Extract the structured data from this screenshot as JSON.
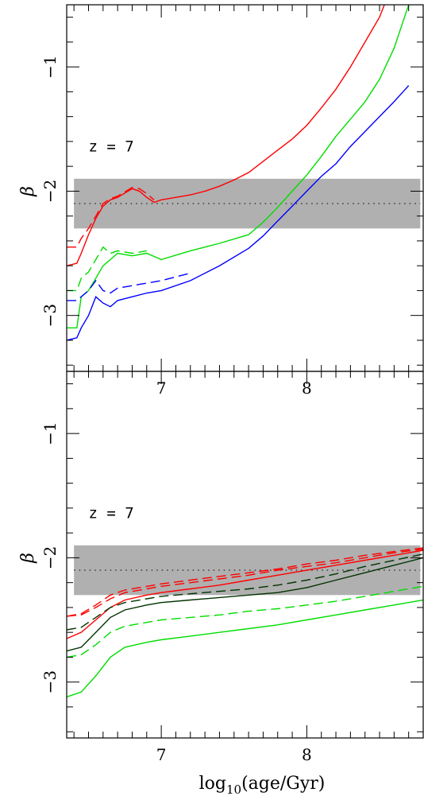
{
  "chart_data": [
    {
      "type": "line",
      "panel": "top",
      "annotation": "z = 7",
      "ylabel": "β",
      "xlim": [
        6.35,
        8.8
      ],
      "ylim": [
        -3.45,
        -0.5
      ],
      "xticks": [
        7,
        8
      ],
      "xtick_labels": [
        "7",
        "8"
      ],
      "yticks": [
        -1,
        -2,
        -3
      ],
      "ytick_labels": [
        "−1",
        "−2",
        "−3"
      ],
      "band": {
        "y0": -2.3,
        "y1": -1.9,
        "x0": 6.4,
        "x1": 8.78,
        "color": "#b0b0b0"
      },
      "reference_line": {
        "y": -2.1,
        "style": "dotted"
      },
      "series": [
        {
          "color": "#ff0000",
          "dash": false,
          "x": [
            6.35,
            6.42,
            6.45,
            6.5,
            6.55,
            6.6,
            6.65,
            6.7,
            6.8,
            6.85,
            6.9,
            6.95,
            7.0,
            7.1,
            7.2,
            7.3,
            7.4,
            7.5,
            7.6,
            7.7,
            7.8,
            7.9,
            8.0,
            8.1,
            8.2,
            8.3,
            8.4,
            8.5,
            8.6,
            8.7
          ],
          "y": [
            -2.6,
            -2.58,
            -2.5,
            -2.35,
            -2.22,
            -2.12,
            -2.07,
            -2.05,
            -1.98,
            -2.0,
            -2.05,
            -2.09,
            -2.07,
            -2.05,
            -2.03,
            -2.0,
            -1.96,
            -1.91,
            -1.85,
            -1.76,
            -1.67,
            -1.58,
            -1.47,
            -1.33,
            -1.18,
            -1.0,
            -0.8,
            -0.6,
            -0.3,
            -0.0
          ]
        },
        {
          "color": "#ff0000",
          "dash": true,
          "x": [
            6.35,
            6.42,
            6.45,
            6.5,
            6.55,
            6.6,
            6.65,
            6.7,
            6.8,
            6.85,
            6.9,
            6.95
          ],
          "y": [
            -2.45,
            -2.45,
            -2.38,
            -2.3,
            -2.2,
            -2.1,
            -2.06,
            -2.04,
            -1.97,
            -1.98,
            -2.02,
            -2.07
          ]
        },
        {
          "color": "#00dd00",
          "dash": false,
          "x": [
            6.35,
            6.42,
            6.45,
            6.5,
            6.55,
            6.6,
            6.65,
            6.7,
            6.8,
            6.9,
            7.0,
            7.2,
            7.4,
            7.6,
            7.7,
            7.8,
            7.9,
            8.0,
            8.1,
            8.2,
            8.3,
            8.4,
            8.5,
            8.6,
            8.7
          ],
          "y": [
            -3.1,
            -3.1,
            -2.85,
            -2.8,
            -2.7,
            -2.6,
            -2.55,
            -2.5,
            -2.52,
            -2.5,
            -2.55,
            -2.48,
            -2.42,
            -2.35,
            -2.25,
            -2.13,
            -2.0,
            -1.87,
            -1.72,
            -1.56,
            -1.42,
            -1.28,
            -1.1,
            -0.85,
            -0.5
          ]
        },
        {
          "color": "#00dd00",
          "dash": true,
          "x": [
            6.35,
            6.42,
            6.45,
            6.5,
            6.55,
            6.6,
            6.65,
            6.7,
            6.8,
            6.9
          ],
          "y": [
            -2.8,
            -2.8,
            -2.7,
            -2.65,
            -2.55,
            -2.45,
            -2.5,
            -2.48,
            -2.5,
            -2.48
          ]
        },
        {
          "color": "#0000ff",
          "dash": false,
          "x": [
            6.35,
            6.42,
            6.45,
            6.5,
            6.55,
            6.6,
            6.65,
            6.7,
            6.8,
            6.9,
            7.0,
            7.2,
            7.4,
            7.6,
            7.7,
            7.8,
            7.9,
            8.0,
            8.1,
            8.2,
            8.3,
            8.4,
            8.5,
            8.6,
            8.7
          ],
          "y": [
            -3.2,
            -3.18,
            -3.1,
            -3.0,
            -2.85,
            -2.9,
            -2.93,
            -2.88,
            -2.85,
            -2.82,
            -2.8,
            -2.72,
            -2.6,
            -2.46,
            -2.36,
            -2.24,
            -2.12,
            -2.0,
            -1.88,
            -1.78,
            -1.64,
            -1.52,
            -1.4,
            -1.28,
            -1.15
          ]
        },
        {
          "color": "#0000ff",
          "dash": true,
          "x": [
            6.35,
            6.42,
            6.45,
            6.5,
            6.55,
            6.6,
            6.65,
            6.7,
            6.8,
            6.9,
            7.0,
            7.2
          ],
          "y": [
            -2.88,
            -2.88,
            -2.85,
            -2.8,
            -2.72,
            -2.8,
            -2.82,
            -2.78,
            -2.76,
            -2.74,
            -2.72,
            -2.66
          ]
        }
      ]
    },
    {
      "type": "line",
      "panel": "bottom",
      "annotation": "z = 7",
      "ylabel": "β",
      "xlabel_main": "log",
      "xlabel_sub": "10",
      "xlabel_rest": "(age/Gyr)",
      "xlim": [
        6.35,
        8.8
      ],
      "ylim": [
        -3.45,
        -0.5
      ],
      "xticks": [
        7,
        8
      ],
      "xtick_labels": [
        "7",
        "8"
      ],
      "yticks": [
        -1,
        -2,
        -3
      ],
      "ytick_labels": [
        "−1",
        "−2",
        "−3"
      ],
      "band": {
        "y0": -2.3,
        "y1": -1.9,
        "x0": 6.4,
        "x1": 8.78,
        "color": "#b0b0b0"
      },
      "reference_line": {
        "y": -2.1,
        "style": "dotted"
      },
      "series": [
        {
          "color": "#ff0000",
          "dash": false,
          "x": [
            6.35,
            6.45,
            6.55,
            6.65,
            6.75,
            6.9,
            7.0,
            7.2,
            7.4,
            7.6,
            7.8,
            8.0,
            8.2,
            8.4,
            8.6,
            8.8
          ],
          "y": [
            -2.65,
            -2.6,
            -2.5,
            -2.4,
            -2.34,
            -2.3,
            -2.28,
            -2.25,
            -2.22,
            -2.18,
            -2.14,
            -2.1,
            -2.06,
            -2.02,
            -1.98,
            -1.94
          ]
        },
        {
          "color": "#ff0000",
          "dash": true,
          "x": [
            6.35,
            6.45,
            6.55,
            6.65,
            6.75,
            6.9,
            7.0,
            7.2,
            7.4,
            7.6,
            7.8,
            8.0,
            8.2,
            8.4,
            8.6,
            8.8
          ],
          "y": [
            -2.47,
            -2.45,
            -2.38,
            -2.3,
            -2.26,
            -2.23,
            -2.21,
            -2.18,
            -2.15,
            -2.12,
            -2.09,
            -2.05,
            -2.02,
            -1.98,
            -1.95,
            -1.92
          ]
        },
        {
          "color": "#ff0000",
          "dash": true,
          "x": [
            6.35,
            6.45,
            6.55,
            6.65,
            6.75,
            6.9,
            7.0,
            7.2,
            7.4,
            7.6,
            7.8,
            8.0,
            8.2,
            8.4,
            8.6,
            8.8
          ],
          "y": [
            -2.47,
            -2.46,
            -2.4,
            -2.33,
            -2.28,
            -2.25,
            -2.23,
            -2.2,
            -2.17,
            -2.14,
            -2.1,
            -2.07,
            -2.04,
            -2.0,
            -1.96,
            -1.93
          ]
        },
        {
          "color": "#003300",
          "dash": false,
          "x": [
            6.35,
            6.45,
            6.55,
            6.65,
            6.75,
            6.9,
            7.0,
            7.2,
            7.4,
            7.6,
            7.8,
            8.0,
            8.2,
            8.4,
            8.6,
            8.8
          ],
          "y": [
            -2.75,
            -2.72,
            -2.6,
            -2.48,
            -2.42,
            -2.38,
            -2.36,
            -2.34,
            -2.32,
            -2.3,
            -2.28,
            -2.24,
            -2.18,
            -2.12,
            -2.06,
            -2.0
          ]
        },
        {
          "color": "#003300",
          "dash": true,
          "x": [
            6.35,
            6.45,
            6.55,
            6.65,
            6.75,
            6.9,
            7.0,
            7.2,
            7.4,
            7.6,
            7.8,
            8.0,
            8.2,
            8.4,
            8.6,
            8.8
          ],
          "y": [
            -2.58,
            -2.56,
            -2.48,
            -2.4,
            -2.36,
            -2.33,
            -2.31,
            -2.29,
            -2.27,
            -2.25,
            -2.22,
            -2.18,
            -2.13,
            -2.07,
            -2.02,
            -1.97
          ]
        },
        {
          "color": "#00dd00",
          "dash": false,
          "x": [
            6.35,
            6.45,
            6.55,
            6.65,
            6.75,
            6.9,
            7.0,
            7.2,
            7.4,
            7.6,
            7.8,
            8.0,
            8.2,
            8.4,
            8.6,
            8.8
          ],
          "y": [
            -3.12,
            -3.08,
            -2.95,
            -2.8,
            -2.72,
            -2.68,
            -2.66,
            -2.63,
            -2.6,
            -2.57,
            -2.54,
            -2.5,
            -2.46,
            -2.42,
            -2.38,
            -2.34
          ]
        },
        {
          "color": "#00dd00",
          "dash": true,
          "x": [
            6.35,
            6.45,
            6.55,
            6.65,
            6.75,
            6.9,
            7.0,
            7.2,
            7.4,
            7.6,
            7.8,
            8.0,
            8.2,
            8.4,
            8.6,
            8.8
          ],
          "y": [
            -2.8,
            -2.78,
            -2.7,
            -2.6,
            -2.55,
            -2.52,
            -2.5,
            -2.48,
            -2.46,
            -2.43,
            -2.41,
            -2.38,
            -2.35,
            -2.31,
            -2.27,
            -2.23
          ]
        }
      ]
    }
  ]
}
